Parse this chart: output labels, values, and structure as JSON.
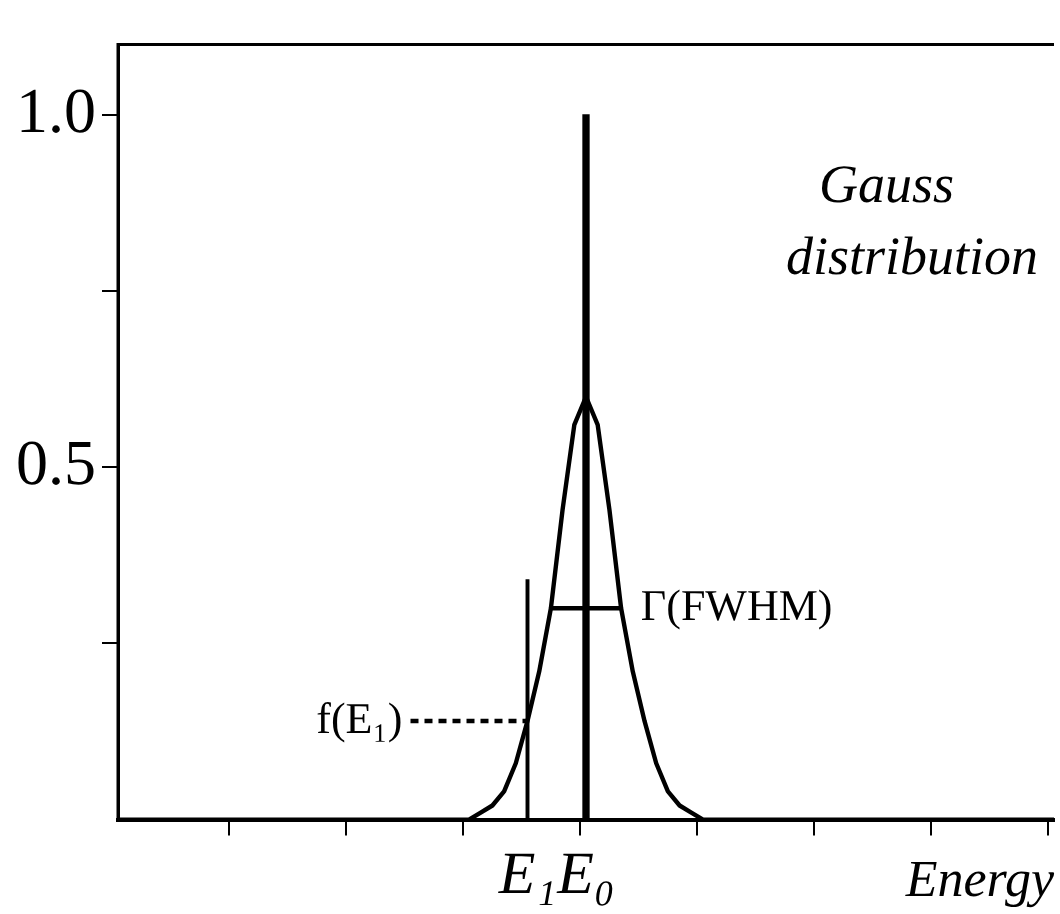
{
  "chart_data": {
    "type": "line",
    "xlabel": "Energy",
    "categories": [
      null,
      null,
      null,
      null,
      null,
      null,
      null,
      null,
      null,
      null,
      null,
      null,
      null,
      null,
      null,
      null,
      null,
      null,
      null,
      null,
      null,
      null,
      null,
      null,
      null,
      null,
      null,
      null,
      null,
      null,
      null,
      null,
      null,
      null,
      null,
      "E₁",
      null,
      null,
      null,
      null,
      "E₀",
      null,
      null,
      null,
      null,
      null,
      null,
      null,
      null,
      null,
      null,
      null,
      null,
      null,
      null,
      null,
      null,
      null,
      null,
      null,
      null,
      null,
      null,
      null,
      null,
      null,
      null,
      null,
      null,
      null,
      null,
      null,
      null,
      null,
      null,
      null,
      null,
      null,
      null,
      null,
      null
    ],
    "ylim": [
      0,
      1.1
    ],
    "yticks": [
      {
        "value": 0.25,
        "label": null
      },
      0.5,
      {
        "value": 0.75,
        "label": null
      },
      {
        "value": 1,
        "label": "1.0"
      }
    ],
    "series": [
      {
        "color": "#000000",
        "values": [
          0,
          0,
          0,
          0,
          0,
          0,
          0,
          0,
          0,
          0,
          0,
          0,
          0,
          0,
          0,
          0,
          0,
          0,
          0,
          0,
          0,
          0,
          0,
          0,
          0,
          0,
          0,
          0,
          0,
          0,
          0,
          0.01,
          0.02,
          0.04,
          0.08,
          0.14,
          0.21,
          0.3,
          0.44,
          0.56,
          0.6,
          0.56,
          0.44,
          0.3,
          0.21,
          0.14,
          0.08,
          0.04,
          0.02,
          0.01,
          0,
          0,
          0,
          0,
          0,
          0,
          0,
          0,
          0,
          0,
          0,
          0,
          0,
          0,
          0,
          0,
          0,
          0,
          0,
          0,
          0,
          0,
          0,
          0,
          0,
          0,
          0,
          0,
          0,
          0,
          0
        ]
      },
      {
        "type": "bar",
        "color": "#000000",
        "values": [
          null,
          null,
          null,
          null,
          null,
          null,
          null,
          null,
          null,
          null,
          null,
          null,
          null,
          null,
          null,
          null,
          null,
          null,
          null,
          null,
          null,
          null,
          null,
          null,
          null,
          null,
          null,
          null,
          null,
          null,
          null,
          null,
          null,
          null,
          null,
          null,
          null,
          null,
          null,
          null,
          1,
          null,
          null,
          null,
          null,
          null,
          null,
          null,
          null,
          null,
          null,
          null,
          null,
          null,
          null,
          null,
          null,
          null,
          null,
          null,
          null,
          null,
          null,
          null,
          null,
          null,
          null,
          null,
          null,
          null,
          null,
          null,
          null,
          null,
          null,
          null,
          null,
          null,
          null,
          null,
          null
        ]
      },
      {
        "color": "#000000",
        "values": [
          null,
          null,
          null,
          null,
          null,
          null,
          null,
          null,
          null,
          null,
          null,
          null,
          null,
          null,
          null,
          null,
          null,
          null,
          null,
          null,
          null,
          null,
          null,
          null,
          null,
          null,
          null,
          null,
          null,
          null,
          null,
          null,
          null,
          null,
          null,
          null,
          null,
          0.3,
          0.3,
          0.3,
          0.3,
          0.3,
          0.3,
          0.3,
          null,
          null,
          null,
          null,
          null,
          null,
          null,
          null,
          null,
          null,
          null,
          null,
          null,
          null,
          null,
          null,
          null,
          null,
          null,
          null,
          null,
          null,
          null,
          null,
          null,
          null,
          null,
          null,
          null,
          null,
          null,
          null,
          null,
          null,
          null,
          null,
          null
        ]
      },
      {
        "color": "#000000",
        "line_style": "dashed",
        "values": [
          null,
          null,
          null,
          null,
          null,
          null,
          null,
          null,
          null,
          null,
          null,
          null,
          null,
          null,
          null,
          null,
          null,
          null,
          null,
          null,
          null,
          null,
          null,
          null,
          null,
          0.14,
          0.14,
          0.14,
          0.14,
          0.14,
          0.14,
          0.14,
          0.14,
          0.14,
          0.14,
          0.14,
          null,
          null,
          null,
          null,
          null,
          null,
          null,
          null,
          null,
          null,
          null,
          null,
          null,
          null,
          null,
          null,
          null,
          null,
          null,
          null,
          null,
          null,
          null,
          null,
          null,
          null,
          null,
          null,
          null,
          null,
          null,
          null,
          null,
          null,
          null,
          null,
          null,
          null,
          null,
          null,
          null,
          null,
          null,
          null,
          null
        ]
      },
      {
        "type": "bar",
        "color": "#000000",
        "values": [
          null,
          null,
          null,
          null,
          null,
          null,
          null,
          null,
          null,
          null,
          null,
          null,
          null,
          null,
          null,
          null,
          null,
          null,
          null,
          null,
          null,
          null,
          null,
          null,
          null,
          null,
          null,
          null,
          null,
          null,
          null,
          null,
          null,
          null,
          null,
          0.34,
          null,
          null,
          null,
          null,
          null,
          null,
          null,
          null,
          null,
          null,
          null,
          null,
          null,
          null,
          null,
          null,
          null,
          null,
          null,
          null,
          null,
          null,
          null,
          null,
          null,
          null,
          null,
          null,
          null,
          null,
          null,
          null,
          null,
          null,
          null,
          null,
          null,
          null,
          null,
          null,
          null,
          null,
          null,
          null,
          null
        ]
      }
    ],
    "annotations": [
      "Gauss\ndistribution",
      {
        "text": "f(E₁)",
        "x": "E₁",
        "y": 0.14
      },
      {
        "text": "Γ(FWHM)",
        "x": "E₀",
        "y": 0.3
      }
    ],
    "grid": false,
    "legend": false,
    "marker": "none"
  }
}
